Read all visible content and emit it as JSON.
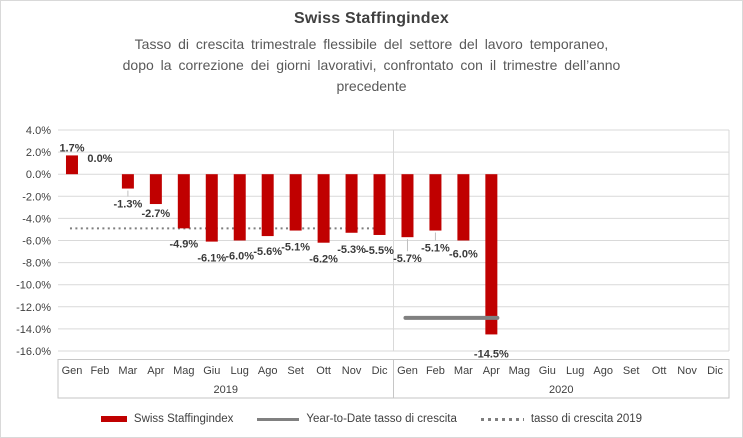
{
  "header": {
    "title": "Swiss Staffingindex",
    "subtitle_lines": [
      "Tasso di crescita trimestrale flessibile del settore del lavoro temporaneo,",
      "dopo la correzione dei giorni lavorativi, confrontato con il trimestre dell’anno",
      "precedente"
    ]
  },
  "chart_data": {
    "type": "bar",
    "title": "Swiss Staffingindex",
    "x_groups": [
      {
        "year": "2019",
        "months": [
          "Gen",
          "Feb",
          "Mar",
          "Apr",
          "Mag",
          "Giu",
          "Lug",
          "Ago",
          "Set",
          "Ott",
          "Nov",
          "Dic"
        ]
      },
      {
        "year": "2020",
        "months": [
          "Gen",
          "Feb",
          "Mar",
          "Apr",
          "Mag",
          "Giu",
          "Lug",
          "Ago",
          "Set",
          "Ott",
          "Nov",
          "Dic"
        ]
      }
    ],
    "series": [
      {
        "name": "Swiss Staffingindex",
        "type": "bar",
        "color": "#C00000",
        "values": [
          1.7,
          0.0,
          -1.3,
          -2.7,
          -4.9,
          -6.1,
          -6.0,
          -5.6,
          -5.1,
          -6.2,
          -5.3,
          -5.5,
          -5.7,
          -5.1,
          -6.0,
          -14.5,
          null,
          null,
          null,
          null,
          null,
          null,
          null,
          null
        ],
        "labels": [
          "1.7%",
          "0.0%",
          "-1.3%",
          "-2.7%",
          "-4.9%",
          "-6.1%",
          "-6.0%",
          "-5.6%",
          "-5.1%",
          "-6.2%",
          "-5.3%",
          "-5.5%",
          "-5.7%",
          "-5.1%",
          "-6.0%",
          "-14.5%",
          null,
          null,
          null,
          null,
          null,
          null,
          null,
          null
        ]
      },
      {
        "name": "Year-to-Date tasso di crescita",
        "type": "line",
        "color": "#808080",
        "value": -13.0,
        "x_start_index": 12,
        "x_end_index": 15
      },
      {
        "name": "tasso di crescita 2019",
        "type": "dotted-line",
        "color": "#7F7F7F",
        "value": -4.9,
        "x_start_index": 0,
        "x_end_index": 11
      }
    ],
    "ylim": [
      -16,
      4
    ],
    "ytick_step": 2,
    "ytick_labels": [
      "4.0%",
      "2.0%",
      "0.0%",
      "-2.0%",
      "-4.0%",
      "-6.0%",
      "-8.0%",
      "-10.0%",
      "-12.0%",
      "-14.0%",
      "-16.0%"
    ],
    "y_unit": "%",
    "grid": true,
    "legend_position": "bottom",
    "label_dy": [
      null,
      null,
      15,
      9,
      15,
      16,
      15,
      15,
      16,
      16,
      16,
      15,
      21,
      17,
      13,
      19
    ],
    "leader_indices": [
      2,
      12,
      13
    ],
    "colors": {
      "bar": "#C00000",
      "gridline": "#D9D9D9",
      "axis_box": "#C6C6C6",
      "text": "#404040",
      "ytd_line": "#808080",
      "dotted_line": "#7F7F7F"
    }
  },
  "legend": {
    "items": [
      {
        "label": "Swiss Staffingindex",
        "swatch": "bar",
        "color": "#C00000"
      },
      {
        "label": "Year-to-Date tasso di crescita",
        "swatch": "line",
        "color": "#808080"
      },
      {
        "label": "tasso di crescita 2019",
        "swatch": "dotted",
        "color": "#7F7F7F"
      }
    ]
  }
}
